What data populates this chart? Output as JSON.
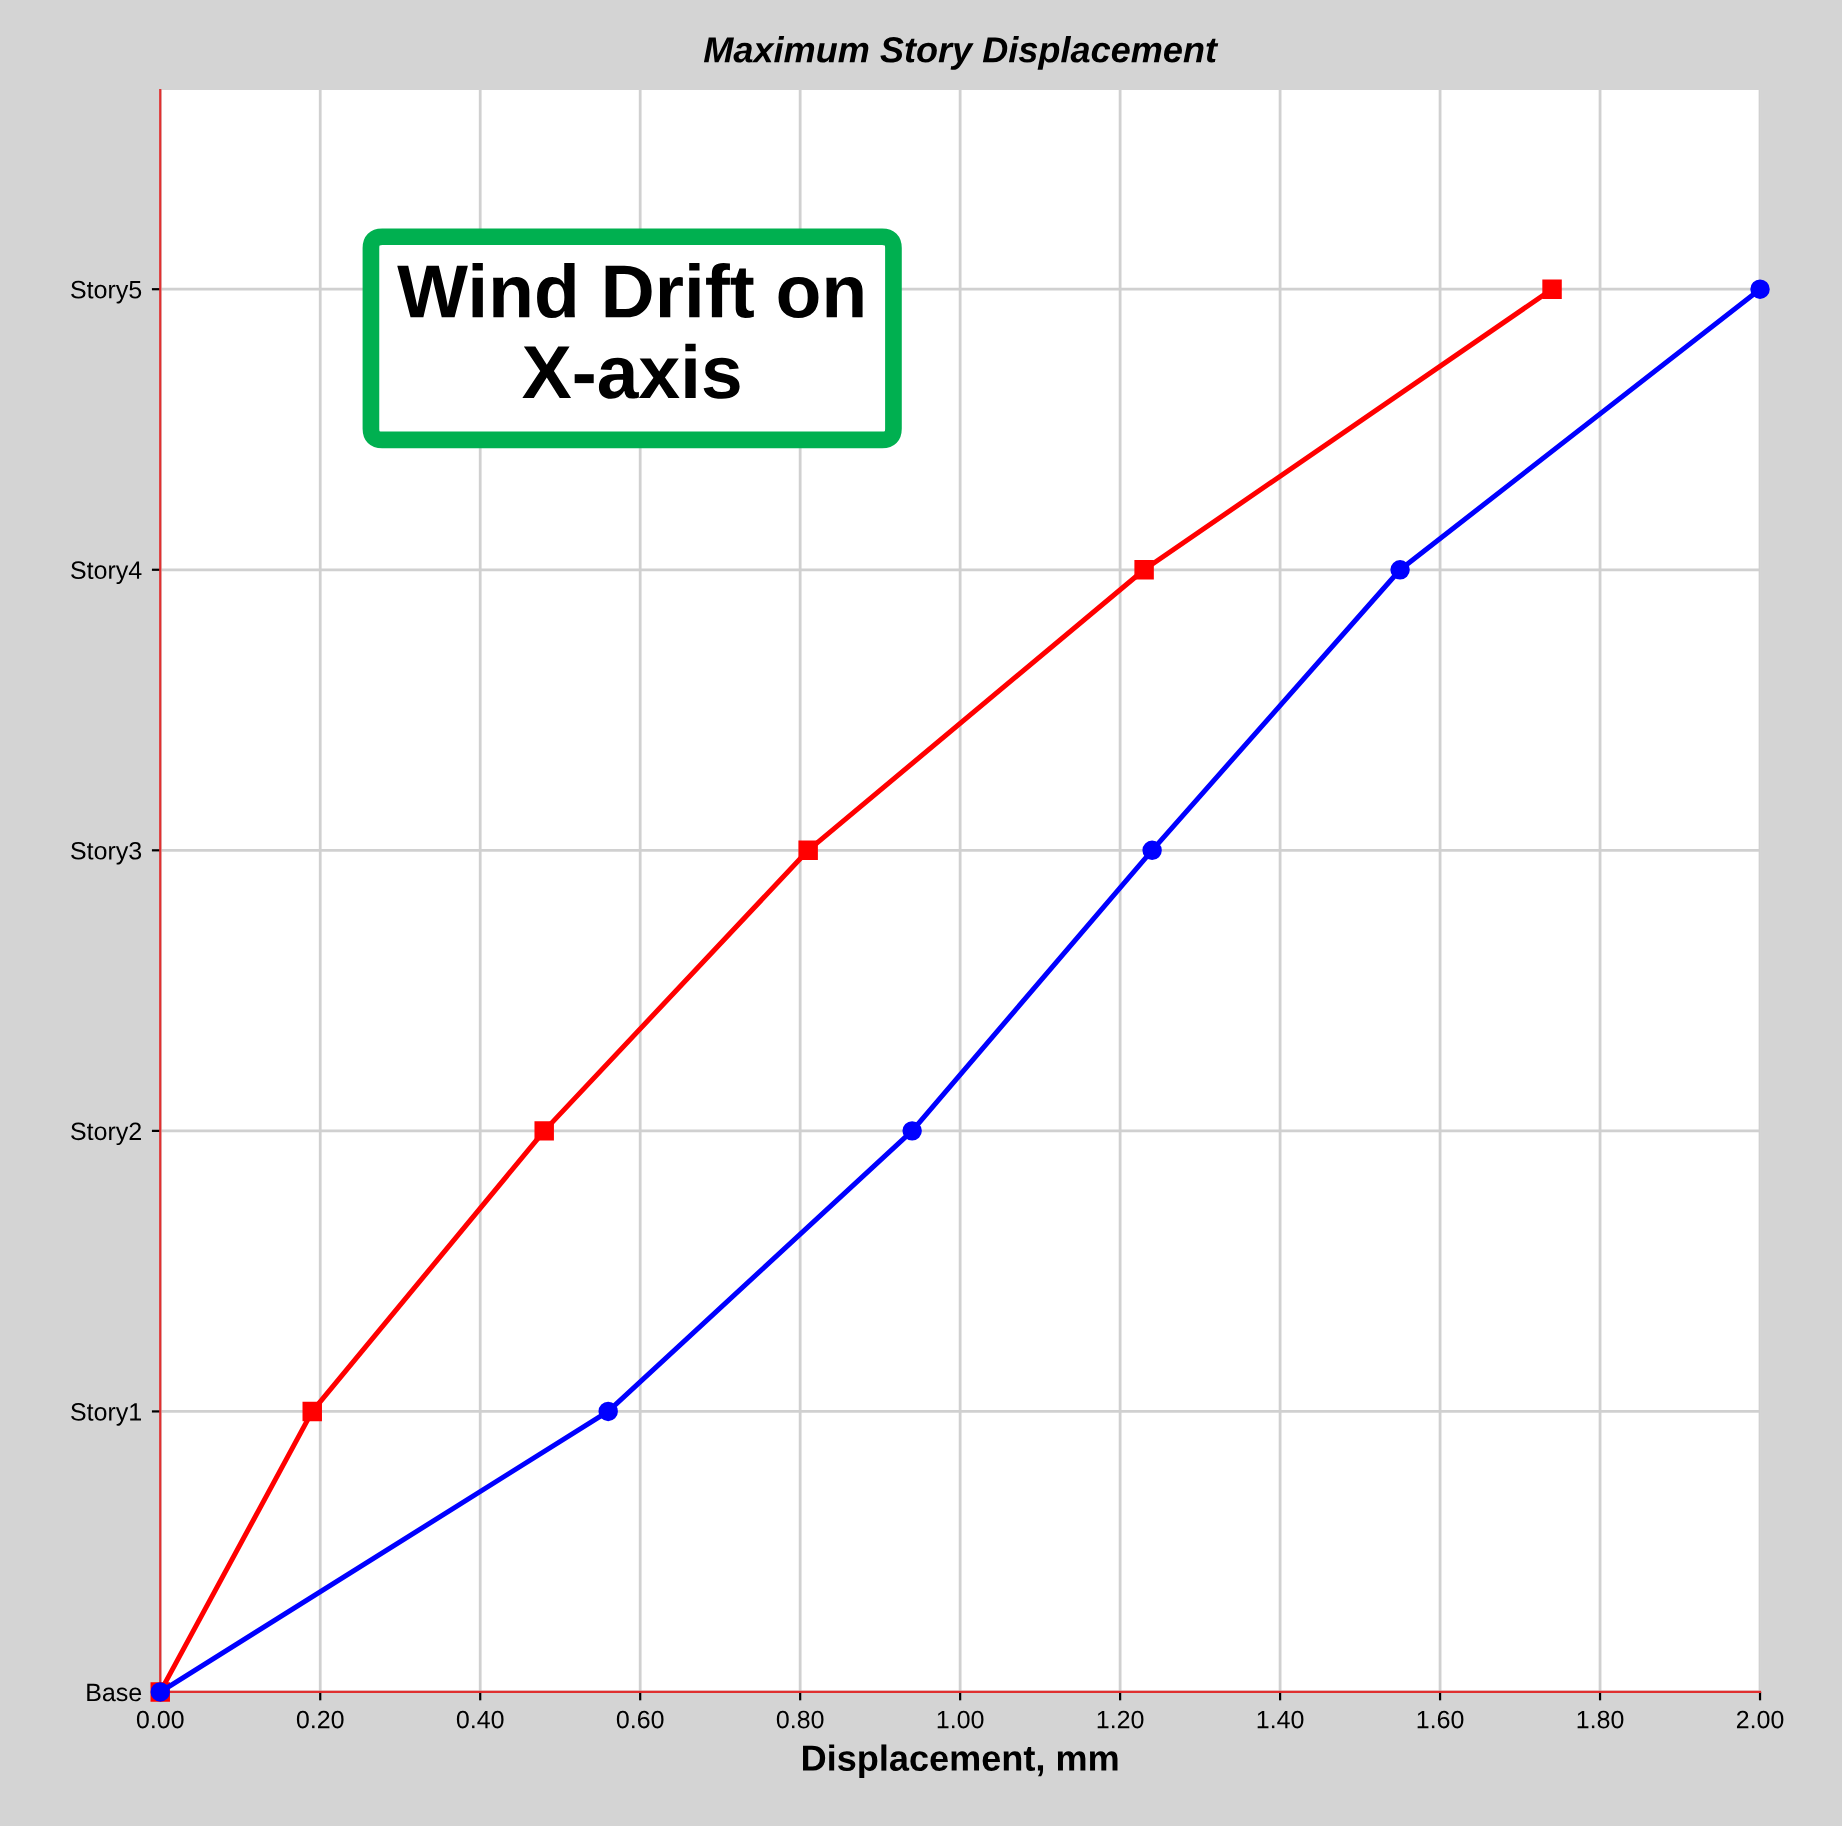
{
  "chart_data": {
    "type": "line",
    "orientation": "horizontal",
    "title": "Maximum Story Displacement",
    "xlabel": "Displacement, mm",
    "annotations": [
      "Wind Drift on\nX-axis"
    ],
    "xlim": [
      0,
      2
    ],
    "xticks": [
      {
        "value": 0,
        "label": "0.00"
      },
      {
        "value": 0.2,
        "label": "0.20"
      },
      {
        "value": 0.4,
        "label": "0.40"
      },
      {
        "value": 0.6,
        "label": "0.60"
      },
      {
        "value": 0.8,
        "label": "0.80"
      },
      {
        "value": 1.0,
        "label": "1.00"
      },
      {
        "value": 1.2,
        "label": "1.20"
      },
      {
        "value": 1.4,
        "label": "1.40"
      },
      {
        "value": 1.6,
        "label": "1.60"
      },
      {
        "value": 1.8,
        "label": "1.80"
      },
      {
        "value": 2.0,
        "label": "2.00"
      }
    ],
    "categories": [
      "Story5",
      "Story4",
      "Story3",
      "Story2",
      "Story1",
      "Base"
    ],
    "grid": true,
    "line_style": "solid",
    "series": [
      {
        "color": "#ff0000",
        "marker": "square",
        "values": [
          1.74,
          1.23,
          0.81,
          0.48,
          0.19,
          0
        ]
      },
      {
        "color": "#0000ff",
        "marker": "circle",
        "values": [
          2.0,
          1.55,
          1.24,
          0.94,
          0.56,
          0
        ]
      }
    ]
  }
}
